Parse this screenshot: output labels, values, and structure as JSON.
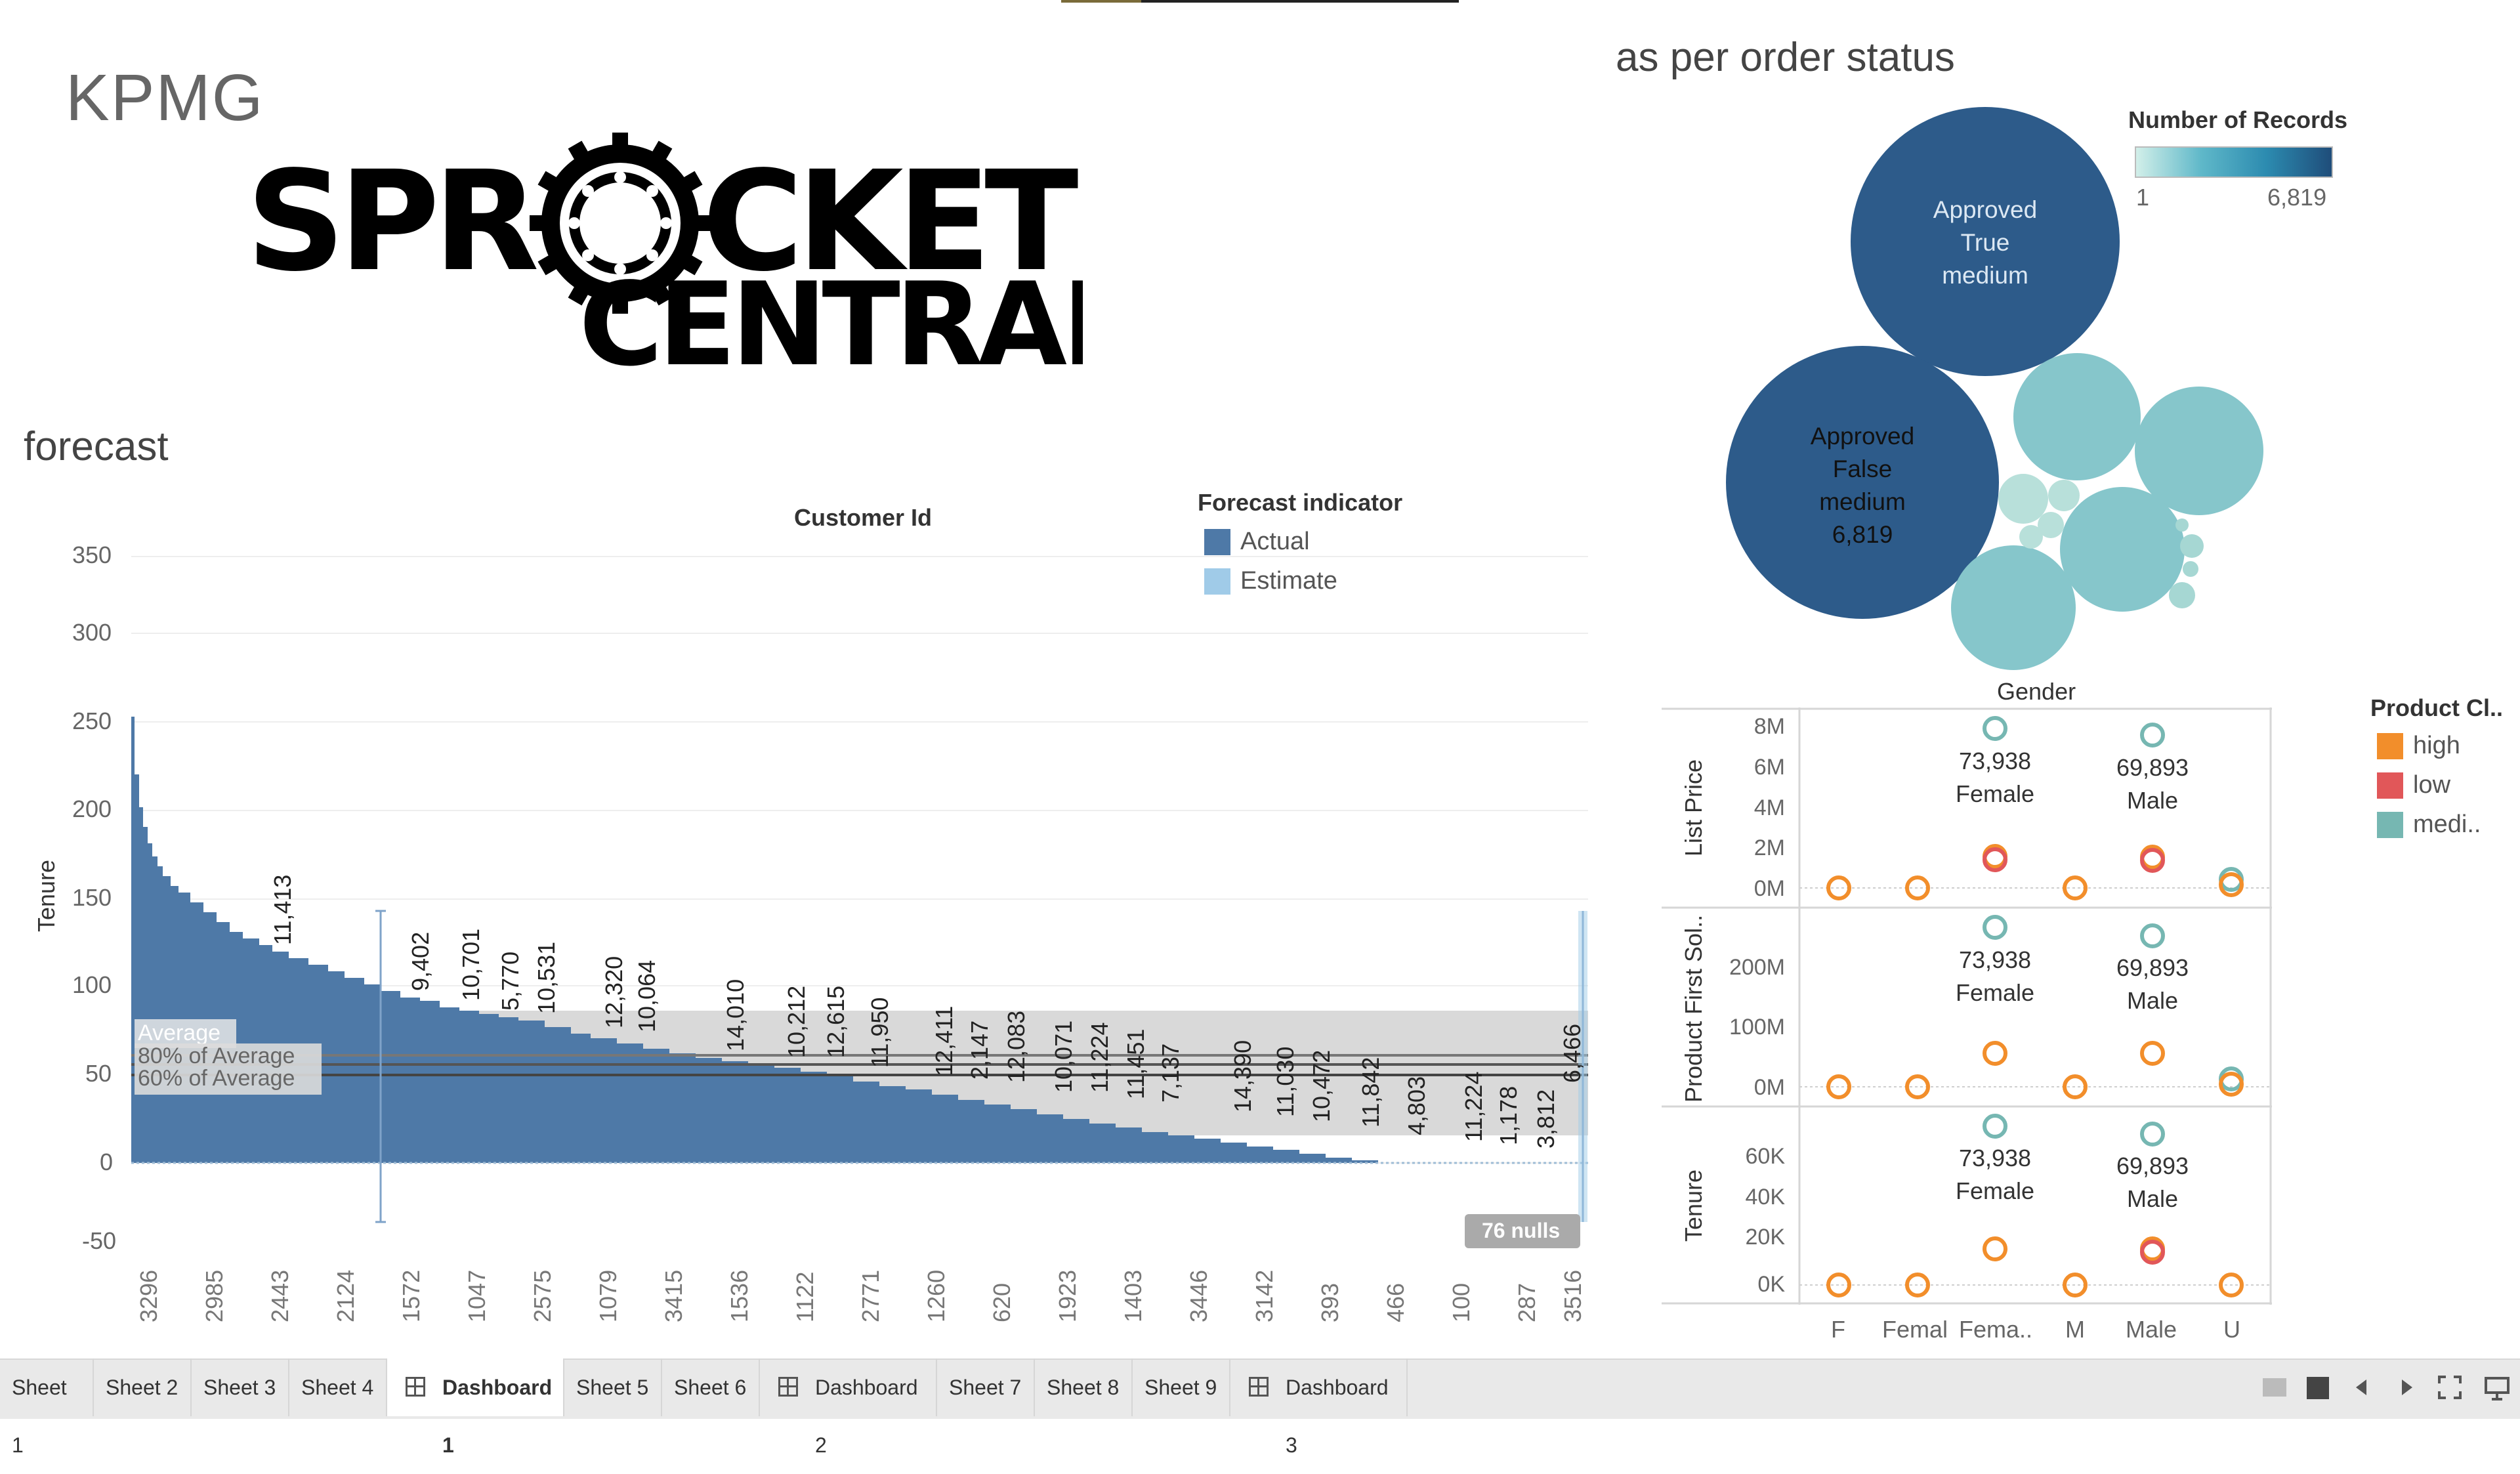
{
  "dashboard": {
    "brand_text": "KPMG",
    "logo": {
      "line1": "SPR",
      "line1b": "CKET",
      "line2": "CENTRAL"
    }
  },
  "forecast": {
    "title": "forecast",
    "subtitle": "Customer Id",
    "y_axis_label": "Tenure",
    "y_ticks": [
      "350",
      "300",
      "250",
      "200",
      "150",
      "100",
      "50",
      "0",
      "-50"
    ],
    "legend_title": "Forecast indicator",
    "legend": [
      {
        "label": "Actual",
        "color": "#4e79a7"
      },
      {
        "label": "Estimate",
        "color": "#a0cbe8"
      }
    ],
    "ref_lines": [
      "Average",
      "80% of Average",
      "60% of Average"
    ],
    "nulls_badge": "76 nulls",
    "bar_labels": [
      "11,413",
      "9,402",
      "10,701",
      "5,770",
      "10,531",
      "12,320",
      "10,064",
      "14,010",
      "10,212",
      "12,615",
      "11,950",
      "12,411",
      "2,147",
      "12,083",
      "10,071",
      "11,224",
      "11,451",
      "7,137",
      "14,390",
      "11,030",
      "10,472",
      "11,842",
      "4,803",
      "11,224",
      "1,178",
      "3,812",
      "6,466"
    ],
    "x_labels": [
      "3296",
      "2985",
      "2443",
      "2124",
      "1572",
      "1047",
      "2575",
      "1079",
      "3415",
      "1536",
      "1122",
      "2771",
      "1260",
      "620",
      "1923",
      "1403",
      "3446",
      "3142",
      "393",
      "466",
      "100",
      "287",
      "3516"
    ]
  },
  "order_status": {
    "title": "as per order status",
    "legend_title": "Number of Records",
    "legend_min": "1",
    "legend_max": "6,819",
    "bubble1": {
      "line1": "Approved",
      "line2": "True",
      "line3": "medium"
    },
    "bubble2": {
      "line1": "Approved",
      "line2": "False",
      "line3": "medium",
      "line4": "6,819"
    }
  },
  "gender_chart": {
    "title": "Gender",
    "row_labels": [
      "List Price",
      "Product First Sol..",
      "Tenure"
    ],
    "row1_ticks": [
      "8M",
      "6M",
      "4M",
      "2M",
      "0M"
    ],
    "row2_ticks": [
      "200M",
      "100M",
      "0M"
    ],
    "row3_ticks": [
      "60K",
      "40K",
      "20K",
      "0K"
    ],
    "point_labels": {
      "female_value": "73,938",
      "female_name": "Female",
      "male_value": "69,893",
      "male_name": "Male"
    },
    "x_labels": [
      "F",
      "Femal",
      "Fema..",
      "M",
      "Male",
      "U"
    ],
    "legend_title": "Product Cl..",
    "legend": [
      {
        "label": "high",
        "color": "#f28e2b"
      },
      {
        "label": "low",
        "color": "#e15759"
      },
      {
        "label": "medi..",
        "color": "#76b7b2"
      }
    ]
  },
  "tabs": [
    {
      "label": "Sheet 1"
    },
    {
      "label": "Sheet 2"
    },
    {
      "label": "Sheet 3"
    },
    {
      "label": "Sheet 4"
    },
    {
      "label": "Dashboard 1"
    },
    {
      "label": "Sheet 5"
    },
    {
      "label": "Sheet 6"
    },
    {
      "label": "Dashboard 2"
    },
    {
      "label": "Sheet 7"
    },
    {
      "label": "Sheet 8"
    },
    {
      "label": "Sheet 9"
    },
    {
      "label": "Dashboard 3"
    }
  ],
  "active_tab": "Dashboard 1",
  "chart_data": [
    {
      "type": "bar",
      "title": "Customer Id",
      "ylabel": "Tenure",
      "ylim": [
        -50,
        350
      ],
      "series": [
        {
          "name": "Actual"
        }
      ],
      "annotated_values": [
        11413,
        9402,
        10701,
        5770,
        10531,
        12320,
        10064,
        14010,
        10212,
        12615,
        11950,
        12411,
        2147,
        12083,
        10071,
        11224,
        11451,
        7137,
        14390,
        11030,
        10472,
        11842,
        4803,
        11224,
        1178,
        3812,
        6466
      ],
      "approx_profile_tenure": [
        255,
        220,
        200,
        170,
        150,
        135,
        125,
        120,
        115,
        110,
        100,
        95,
        90,
        85,
        80,
        75,
        70,
        65,
        62,
        58,
        55,
        50,
        48,
        45,
        40,
        38,
        35,
        30,
        28,
        25,
        22,
        20,
        18,
        15,
        12,
        10,
        8,
        5,
        2
      ]
    },
    {
      "type": "scatter",
      "title": "Gender",
      "categories": [
        "F",
        "Femal",
        "Fema..",
        "M",
        "Male",
        "U"
      ],
      "series": [
        {
          "name": "high",
          "List Price": [
            0.02,
            0.02,
            1.7,
            0.02,
            1.6,
            0.2
          ]
        },
        {
          "name": "low",
          "List Price": [
            0.02,
            0.02,
            1.5,
            0.02,
            1.4,
            0.1
          ]
        },
        {
          "name": "medi..",
          "List Price": [
            0.02,
            0.02,
            8.0,
            0.02,
            7.6,
            0.4
          ]
        }
      ]
    }
  ]
}
